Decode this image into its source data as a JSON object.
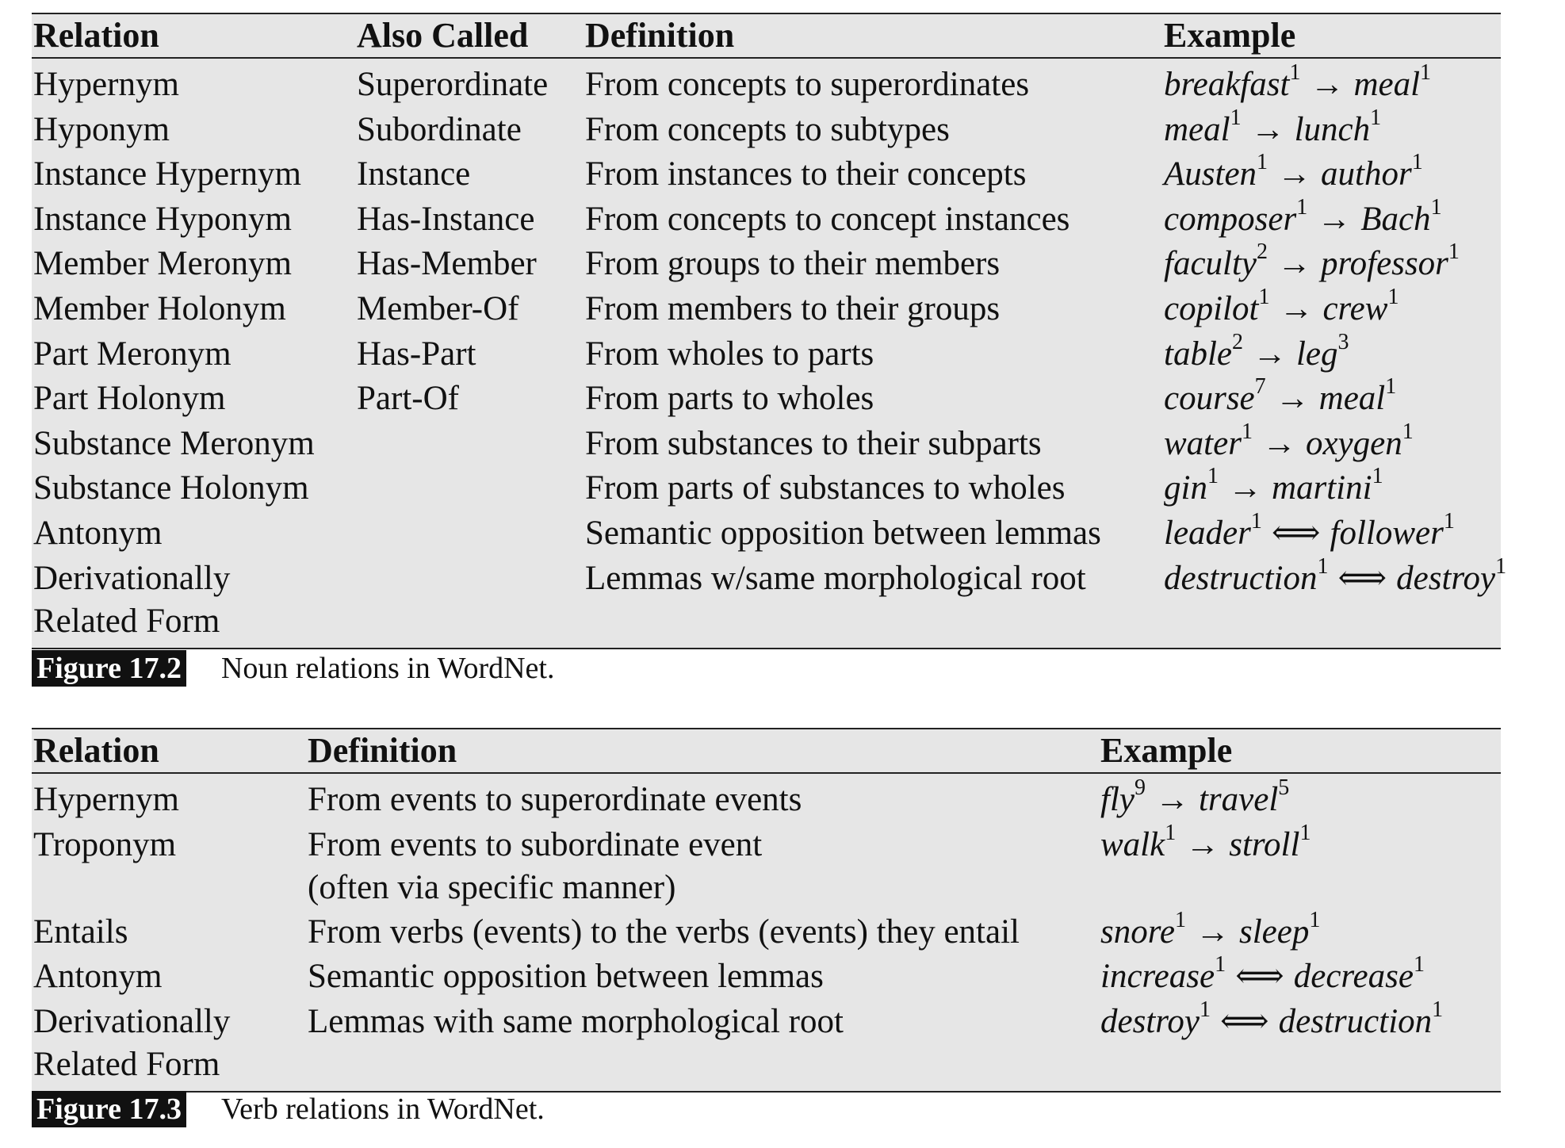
{
  "noun_table": {
    "headers": [
      "Relation",
      "Also Called",
      "Definition",
      "Example"
    ],
    "rows": [
      {
        "relation": "Hypernym",
        "also": "Superordinate",
        "definition": "From concepts to superordinates",
        "example": {
          "left": "breakfast",
          "ls": "1",
          "arrow": "→",
          "right": "meal",
          "rs": "1"
        }
      },
      {
        "relation": "Hyponym",
        "also": "Subordinate",
        "definition": "From concepts to subtypes",
        "example": {
          "left": "meal",
          "ls": "1",
          "arrow": "→",
          "right": "lunch",
          "rs": "1"
        }
      },
      {
        "relation": "Instance Hypernym",
        "also": "Instance",
        "definition": "From instances to their concepts",
        "example": {
          "left": "Austen",
          "ls": "1",
          "arrow": "→",
          "right": "author",
          "rs": "1"
        }
      },
      {
        "relation": "Instance Hyponym",
        "also": "Has-Instance",
        "definition": "From concepts to concept instances",
        "example": {
          "left": "composer",
          "ls": "1",
          "arrow": "→",
          "right": "Bach",
          "rs": "1"
        }
      },
      {
        "relation": "Member Meronym",
        "also": "Has-Member",
        "definition": "From groups to their members",
        "example": {
          "left": "faculty",
          "ls": "2",
          "arrow": "→",
          "right": "professor",
          "rs": "1"
        }
      },
      {
        "relation": "Member Holonym",
        "also": "Member-Of",
        "definition": "From members to their groups",
        "example": {
          "left": "copilot",
          "ls": "1",
          "arrow": "→",
          "right": "crew",
          "rs": "1"
        }
      },
      {
        "relation": "Part Meronym",
        "also": "Has-Part",
        "definition": "From wholes to parts",
        "example": {
          "left": "table",
          "ls": "2",
          "arrow": "→",
          "right": "leg",
          "rs": "3"
        }
      },
      {
        "relation": "Part Holonym",
        "also": "Part-Of",
        "definition": "From parts to wholes",
        "example": {
          "left": "course",
          "ls": "7",
          "arrow": "→",
          "right": "meal",
          "rs": "1"
        }
      },
      {
        "relation": "Substance Meronym",
        "also": "",
        "definition": "From substances to their subparts",
        "example": {
          "left": "water",
          "ls": "1",
          "arrow": "→",
          "right": "oxygen",
          "rs": "1"
        }
      },
      {
        "relation": "Substance Holonym",
        "also": "",
        "definition": "From parts of substances to wholes",
        "example": {
          "left": "gin",
          "ls": "1",
          "arrow": "→",
          "right": "martini",
          "rs": "1"
        }
      },
      {
        "relation": "Antonym",
        "also": "",
        "definition": "Semantic opposition between lemmas",
        "example": {
          "left": "leader",
          "ls": "1",
          "arrow": "⟺",
          "right": "follower",
          "rs": "1"
        }
      },
      {
        "relation": "Derivationally\n   Related Form",
        "also": "",
        "definition": "Lemmas w/same morphological root",
        "example": {
          "left": "destruction",
          "ls": "1",
          "arrow": "⟺",
          "right": "destroy",
          "rs": "1"
        }
      }
    ],
    "caption_label": "Figure 17.2",
    "caption_text": "Noun relations in WordNet."
  },
  "verb_table": {
    "headers": [
      "Relation",
      "Definition",
      "Example"
    ],
    "rows": [
      {
        "relation": "Hypernym",
        "definition": "From events to superordinate events",
        "example": {
          "left": "fly",
          "ls": "9",
          "arrow": "→",
          "right": "travel",
          "rs": "5"
        }
      },
      {
        "relation": "Troponym",
        "definition": "From events to subordinate event\n(often via specific manner)",
        "example": {
          "left": "walk",
          "ls": "1",
          "arrow": "→",
          "right": "stroll",
          "rs": "1"
        }
      },
      {
        "relation": "Entails",
        "definition": "From verbs (events) to the verbs (events) they entail",
        "example": {
          "left": "snore",
          "ls": "1",
          "arrow": "→",
          "right": "sleep",
          "rs": "1"
        }
      },
      {
        "relation": "Antonym",
        "definition": "Semantic opposition between lemmas",
        "example": {
          "left": "increase",
          "ls": "1",
          "arrow": "⟺",
          "right": "decrease",
          "rs": "1"
        }
      },
      {
        "relation": "Derivationally\n   Related Form",
        "definition": "Lemmas with same morphological root",
        "example": {
          "left": "destroy",
          "ls": "1",
          "arrow": "⟺",
          "right": "destruction",
          "rs": "1"
        }
      }
    ],
    "caption_label": "Figure 17.3",
    "caption_text": "Verb relations in WordNet."
  }
}
